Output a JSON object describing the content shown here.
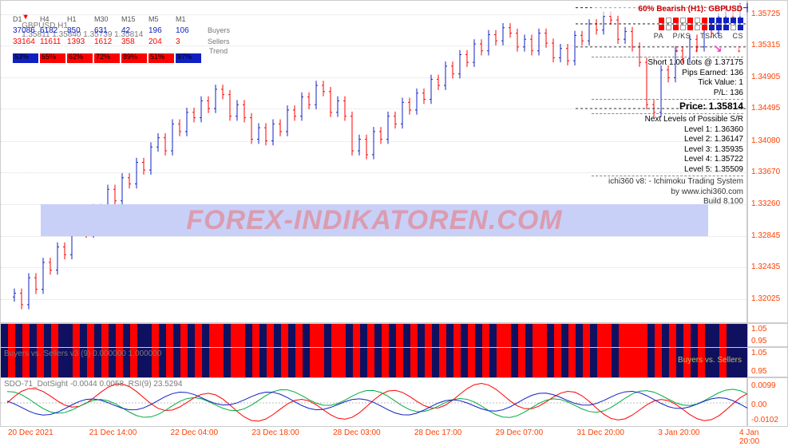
{
  "title": {
    "symbol": "GBPUSD,H1",
    "ohlc": "1.35811 1.35840 1.35739 1.35814"
  },
  "colors": {
    "up": "#1020c0",
    "down": "#ff0000",
    "axis_text": "#ff4000",
    "grid": "#dddddd",
    "bg": "#ffffff",
    "sub_bg": "#101060",
    "accent": "#00aa40",
    "grey": "#777777"
  },
  "timeframes": [
    "D1",
    "H4",
    "H1",
    "M30",
    "M15",
    "M5",
    "M1"
  ],
  "buyers": [
    37086,
    6182,
    850,
    631,
    42,
    196,
    106
  ],
  "sellers": [
    33164,
    11611,
    1393,
    1612,
    358,
    204,
    3
  ],
  "buyers_color": "#1020c0",
  "sellers_color": "#ff0000",
  "row_labels": [
    "Buyers",
    "Sellers",
    "Trend"
  ],
  "trend_bars": [
    {
      "pct": "53%",
      "col": "#1020c0"
    },
    {
      "pct": "65%",
      "col": "#ff0000"
    },
    {
      "pct": "62%",
      "col": "#ff0000"
    },
    {
      "pct": "72%",
      "col": "#ff0000"
    },
    {
      "pct": "89%",
      "col": "#ff0000"
    },
    {
      "pct": "51%",
      "col": "#ff0000"
    },
    {
      "pct": "97%",
      "col": "#1020c0"
    }
  ],
  "yaxis_main": {
    "min": 1.317,
    "max": 1.359,
    "ticks": [
      1.35725,
      1.35315,
      1.34905,
      1.34495,
      1.3408,
      1.3367,
      1.3326,
      1.32845,
      1.32435,
      1.32025
    ]
  },
  "xaxis": [
    "20 Dec 2021",
    "21 Dec 14:00",
    "22 Dec 04:00",
    "23 Dec 18:00",
    "28 Dec 03:00",
    "28 Dec 17:00",
    "29 Dec 07:00",
    "31 Dec 20:00",
    "3 Jan 20:00",
    "4 Jan 20:00"
  ],
  "info": {
    "headline": "60% Bearish (H1): GBPUSD",
    "sq_row1": [
      "#ff0000",
      "#ffffff",
      "#ff0000",
      "#ffffff",
      "#ff0000",
      "#ffffff",
      "#ff0000",
      "#1020c0",
      "#1020c0",
      "#1020c0",
      "#1020c0",
      "#1020c0"
    ],
    "sq_row2": [
      "#ff0000",
      "#ffffff",
      "#ff0000",
      "#ffffff",
      "#ff0000",
      "#ffffff",
      "#ff0000",
      "#1020c0",
      "#1020c0",
      "#1020c0",
      "#ffffff",
      "#1020c0"
    ],
    "sig_labels": "PA    P/KS    TS/KS    CS",
    "sig_arrows": [
      {
        "g": "↓",
        "c": "#ff0000"
      },
      {
        "g": "↓",
        "c": "#ff0000"
      },
      {
        "g": "↘",
        "c": "#ff40c0"
      },
      {
        "g": "↓",
        "c": "#ff0000"
      }
    ],
    "trade": [
      "Short 1.00 Lots @ 1.37175",
      "Pips Earned: 136",
      "Tick Value: 1",
      "P/L: 136"
    ],
    "price_label": "Price: 1.35814",
    "sr_header": "Next Levels of Possible S/R",
    "levels": [
      "Level 1: 1.36360",
      "Level 2: 1.36147",
      "Level 3: 1.35935",
      "Level 4: 1.35722",
      "Level 5: 1.35509"
    ],
    "footer": [
      "ichi360 v8: - Ichimoku Trading System",
      "by www.ichi360.com",
      "Build 8.100"
    ]
  },
  "watermark": "FOREX-INDIKATOREN.COM",
  "sub1": {
    "ticks": [
      "1.05",
      "0.95"
    ]
  },
  "sub2": {
    "label_left": "Buyers vs. Sellers v3 (9) 0.000000 1.000000",
    "label_right": "Buyers vs. Sellers",
    "ticks": [
      "1.05",
      "0.95"
    ]
  },
  "sub3": {
    "label": "SDO-71_DotSight -0.0044 0.0058  RSI(9) 23.5294",
    "ticks": [
      "0.0099",
      "0.00",
      "-0.0102"
    ]
  },
  "price_curve_closes": [
    1.3205,
    1.321,
    1.3195,
    1.323,
    1.3215,
    1.325,
    1.324,
    1.327,
    1.326,
    1.3295,
    1.33,
    1.3288,
    1.332,
    1.331,
    1.3345,
    1.333,
    1.336,
    1.3352,
    1.338,
    1.337,
    1.34,
    1.3412,
    1.3395,
    1.343,
    1.342,
    1.3445,
    1.3438,
    1.346,
    1.345,
    1.3475,
    1.3468,
    1.344,
    1.3455,
    1.3438,
    1.341,
    1.3425,
    1.3408,
    1.343,
    1.342,
    1.3448,
    1.344,
    1.3465,
    1.3455,
    1.348,
    1.3472,
    1.3445,
    1.346,
    1.344,
    1.3395,
    1.341,
    1.339,
    1.342,
    1.341,
    1.344,
    1.343,
    1.3458,
    1.3448,
    1.347,
    1.3462,
    1.3488,
    1.348,
    1.3505,
    1.3495,
    1.352,
    1.351,
    1.3534,
    1.3525,
    1.3546,
    1.3538,
    1.3555,
    1.3548,
    1.353,
    1.354,
    1.3525,
    1.3548,
    1.3535,
    1.3516,
    1.3528,
    1.3512,
    1.3545,
    1.3538,
    1.356,
    1.3552,
    1.357,
    1.3565,
    1.354,
    1.355,
    1.353,
    1.351,
    1.3455,
    1.3445,
    1.35,
    1.349,
    1.3525,
    1.3515,
    1.354,
    1.353,
    1.3555,
    1.3548,
    1.3568,
    1.3578,
    1.3568,
    1.3581,
    1.3581
  ]
}
